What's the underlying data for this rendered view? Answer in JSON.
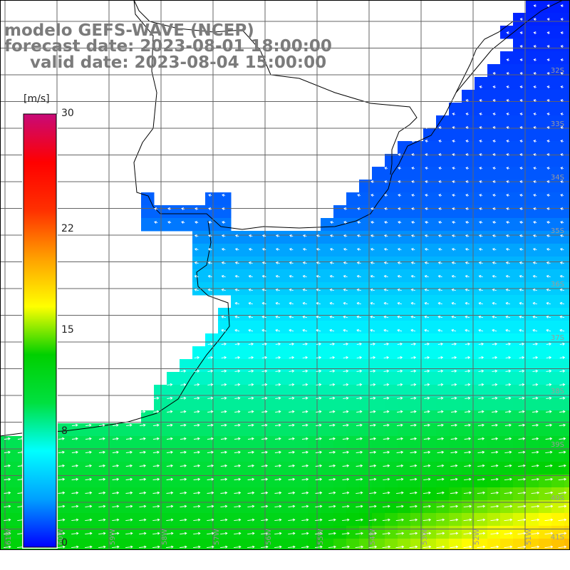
{
  "title": {
    "model_line": "modelo GEFS-WAVE (NCEP)",
    "forecast_line": "forecast date: 2023-08-01 18:00:00",
    "valid_line": "valid date: 2023-08-04 15:00:00"
  },
  "colorbar": {
    "unit": "[m/s]",
    "ticks": [
      {
        "value": 30,
        "label": "30"
      },
      {
        "value": 22,
        "label": "22"
      },
      {
        "value": 15,
        "label": "15"
      },
      {
        "value": 8,
        "label": "8"
      },
      {
        "value": 0,
        "label": "0"
      }
    ],
    "colors": [
      "#0000ff",
      "#00a0ff",
      "#00ffff",
      "#00e040",
      "#00d000",
      "#ffff00",
      "#ffa000",
      "#ff3000",
      "#ff0000",
      "#c80a78"
    ],
    "min": 0,
    "max": 30
  },
  "latitude_labels": [
    "32S",
    "33S",
    "34S",
    "35S",
    "36S",
    "37S",
    "38S",
    "39S",
    "40S",
    "41S"
  ],
  "longitude_labels": [
    "61W",
    "60W",
    "59W",
    "58W",
    "57W",
    "56W",
    "55W",
    "54W",
    "53W",
    "52W",
    "51W"
  ],
  "map_colors": {
    "land": "#ffffff",
    "coast": "#000000",
    "grid": "#646464",
    "arrow": "#ffffff",
    "axis_label": "#9a9a9a"
  },
  "variable": "wind speed",
  "wind_direction": "from the west-southwest in the south, from the east-northeast in the north"
}
